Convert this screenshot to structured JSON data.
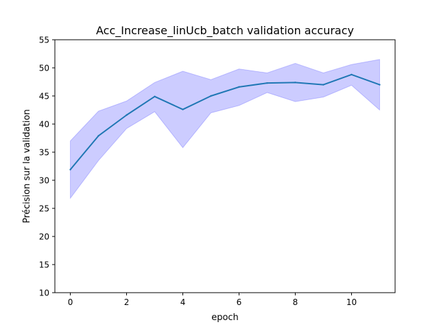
{
  "chart_data": {
    "type": "line",
    "title": "Acc_Increase_linUcb_batch validation accuracy",
    "xlabel": "epoch",
    "ylabel": "Précision sur la validation",
    "xlim": [
      -0.55,
      11.55
    ],
    "ylim": [
      10,
      55
    ],
    "xticks": [
      0,
      2,
      4,
      6,
      8,
      10
    ],
    "yticks": [
      10,
      15,
      20,
      25,
      30,
      35,
      40,
      45,
      50,
      55
    ],
    "grid": false,
    "x": [
      0,
      1,
      2,
      3,
      4,
      5,
      6,
      7,
      8,
      9,
      10,
      11
    ],
    "series": [
      {
        "values": [
          31.9,
          37.9,
          41.6,
          44.9,
          42.6,
          45.0,
          46.6,
          47.3,
          47.4,
          47.0,
          48.8,
          47.0
        ],
        "color": "#1f77b4"
      }
    ],
    "band": {
      "lower": [
        26.8,
        33.5,
        39.2,
        42.2,
        35.8,
        42.0,
        43.3,
        45.6,
        44.0,
        44.8,
        46.9,
        42.5
      ],
      "upper": [
        37.0,
        42.3,
        44.1,
        47.4,
        49.4,
        47.9,
        49.8,
        49.1,
        50.8,
        49.1,
        50.6,
        51.5
      ],
      "color": "#0000ff"
    }
  }
}
